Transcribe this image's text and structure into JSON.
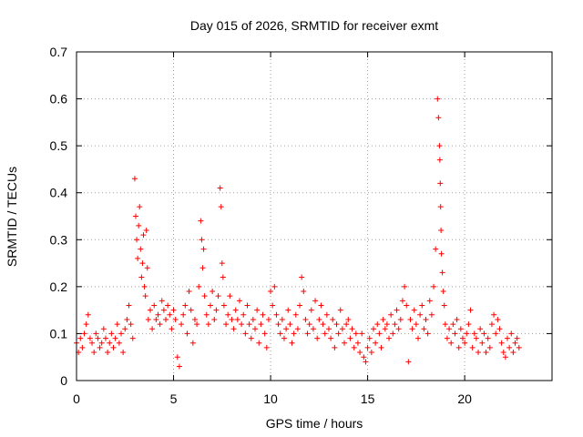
{
  "chart_data": {
    "type": "scatter",
    "title": "Day 015 of 2026, SRMTID for receiver exmt",
    "xlabel": "GPS time / hours",
    "ylabel": "SRMTID / TECUs",
    "xlim": [
      0,
      24.5
    ],
    "ylim": [
      0,
      0.7
    ],
    "xticks": [
      0,
      5,
      10,
      15,
      20
    ],
    "xtick_labels": [
      "0",
      "5",
      "10",
      "15",
      "20"
    ],
    "yticks": [
      0,
      0.1,
      0.2,
      0.3,
      0.4,
      0.5,
      0.6,
      0.7
    ],
    "ytick_labels": [
      "0",
      "0.1",
      "0.2",
      "0.3",
      "0.4",
      "0.5",
      "0.6",
      "0.7"
    ],
    "grid": true,
    "marker": "+",
    "color": "#ff0000",
    "series": [
      {
        "name": "SRMTID",
        "x": [
          0.0,
          0.1,
          0.2,
          0.3,
          0.4,
          0.5,
          0.6,
          0.7,
          0.8,
          0.9,
          1.0,
          1.1,
          1.2,
          1.3,
          1.4,
          1.5,
          1.6,
          1.7,
          1.8,
          1.9,
          2.0,
          2.1,
          2.2,
          2.3,
          2.4,
          2.5,
          2.6,
          2.7,
          2.8,
          2.9,
          3.0,
          3.05,
          3.1,
          3.15,
          3.2,
          3.25,
          3.3,
          3.35,
          3.4,
          3.45,
          3.5,
          3.55,
          3.6,
          3.65,
          3.7,
          3.8,
          3.9,
          4.0,
          4.1,
          4.2,
          4.3,
          4.4,
          4.5,
          4.6,
          4.7,
          4.8,
          4.9,
          5.0,
          5.1,
          5.2,
          5.3,
          5.4,
          5.5,
          5.6,
          5.7,
          5.8,
          5.9,
          6.0,
          6.1,
          6.2,
          6.3,
          6.4,
          6.45,
          6.5,
          6.55,
          6.6,
          6.7,
          6.8,
          6.9,
          7.0,
          7.1,
          7.2,
          7.3,
          7.4,
          7.45,
          7.5,
          7.55,
          7.6,
          7.7,
          7.8,
          7.9,
          8.0,
          8.1,
          8.2,
          8.3,
          8.4,
          8.5,
          8.6,
          8.7,
          8.8,
          8.9,
          9.0,
          9.1,
          9.2,
          9.3,
          9.4,
          9.5,
          9.6,
          9.7,
          9.8,
          9.9,
          10.0,
          10.1,
          10.2,
          10.3,
          10.4,
          10.5,
          10.6,
          10.7,
          10.8,
          10.9,
          11.0,
          11.1,
          11.2,
          11.3,
          11.4,
          11.5,
          11.6,
          11.7,
          11.8,
          11.9,
          12.0,
          12.1,
          12.2,
          12.3,
          12.4,
          12.5,
          12.6,
          12.7,
          12.8,
          12.9,
          13.0,
          13.1,
          13.2,
          13.3,
          13.4,
          13.5,
          13.6,
          13.7,
          13.8,
          13.9,
          14.0,
          14.1,
          14.2,
          14.3,
          14.4,
          14.5,
          14.6,
          14.7,
          14.8,
          14.9,
          15.0,
          15.1,
          15.2,
          15.3,
          15.4,
          15.5,
          15.6,
          15.7,
          15.8,
          15.9,
          16.0,
          16.1,
          16.2,
          16.3,
          16.4,
          16.5,
          16.6,
          16.7,
          16.8,
          16.9,
          17.0,
          17.1,
          17.2,
          17.3,
          17.4,
          17.5,
          17.6,
          17.7,
          17.8,
          17.9,
          18.0,
          18.1,
          18.2,
          18.3,
          18.4,
          18.5,
          18.6,
          18.65,
          18.7,
          18.72,
          18.74,
          18.76,
          18.78,
          18.8,
          18.85,
          18.9,
          18.95,
          19.0,
          19.1,
          19.2,
          19.3,
          19.4,
          19.5,
          19.6,
          19.7,
          19.8,
          19.9,
          20.0,
          20.1,
          20.2,
          20.3,
          20.4,
          20.5,
          20.6,
          20.7,
          20.8,
          20.9,
          21.0,
          21.1,
          21.2,
          21.3,
          21.4,
          21.5,
          21.6,
          21.7,
          21.8,
          21.9,
          22.0,
          22.1,
          22.2,
          22.3,
          22.4,
          22.5,
          22.6,
          22.7,
          22.8
        ],
        "y": [
          0.08,
          0.06,
          0.09,
          0.07,
          0.1,
          0.12,
          0.14,
          0.09,
          0.08,
          0.06,
          0.1,
          0.09,
          0.07,
          0.08,
          0.11,
          0.09,
          0.06,
          0.08,
          0.1,
          0.07,
          0.09,
          0.12,
          0.08,
          0.1,
          0.06,
          0.11,
          0.13,
          0.16,
          0.12,
          0.09,
          0.43,
          0.35,
          0.3,
          0.26,
          0.33,
          0.37,
          0.28,
          0.22,
          0.25,
          0.31,
          0.2,
          0.18,
          0.32,
          0.24,
          0.13,
          0.15,
          0.11,
          0.16,
          0.13,
          0.14,
          0.12,
          0.17,
          0.15,
          0.13,
          0.16,
          0.14,
          0.11,
          0.15,
          0.13,
          0.05,
          0.03,
          0.12,
          0.14,
          0.16,
          0.1,
          0.19,
          0.15,
          0.08,
          0.13,
          0.12,
          0.2,
          0.34,
          0.3,
          0.24,
          0.28,
          0.18,
          0.14,
          0.12,
          0.16,
          0.19,
          0.13,
          0.15,
          0.18,
          0.41,
          0.37,
          0.25,
          0.22,
          0.16,
          0.12,
          0.14,
          0.18,
          0.13,
          0.11,
          0.15,
          0.13,
          0.17,
          0.12,
          0.14,
          0.1,
          0.16,
          0.12,
          0.09,
          0.13,
          0.11,
          0.15,
          0.08,
          0.12,
          0.14,
          0.1,
          0.07,
          0.13,
          0.19,
          0.16,
          0.2,
          0.14,
          0.12,
          0.1,
          0.13,
          0.09,
          0.11,
          0.15,
          0.12,
          0.08,
          0.1,
          0.14,
          0.11,
          0.16,
          0.22,
          0.19,
          0.13,
          0.1,
          0.12,
          0.15,
          0.11,
          0.17,
          0.09,
          0.13,
          0.16,
          0.12,
          0.1,
          0.14,
          0.11,
          0.09,
          0.13,
          0.07,
          0.12,
          0.1,
          0.15,
          0.11,
          0.08,
          0.12,
          0.13,
          0.09,
          0.11,
          0.07,
          0.1,
          0.08,
          0.06,
          0.1,
          0.05,
          0.04,
          0.07,
          0.09,
          0.06,
          0.11,
          0.08,
          0.12,
          0.1,
          0.07,
          0.13,
          0.11,
          0.12,
          0.09,
          0.14,
          0.1,
          0.12,
          0.15,
          0.11,
          0.13,
          0.17,
          0.2,
          0.16,
          0.04,
          0.13,
          0.11,
          0.15,
          0.12,
          0.09,
          0.14,
          0.16,
          0.11,
          0.13,
          0.1,
          0.17,
          0.14,
          0.2,
          0.28,
          0.6,
          0.56,
          0.5,
          0.47,
          0.42,
          0.37,
          0.32,
          0.27,
          0.23,
          0.19,
          0.16,
          0.12,
          0.09,
          0.11,
          0.08,
          0.12,
          0.1,
          0.13,
          0.07,
          0.11,
          0.09,
          0.08,
          0.1,
          0.12,
          0.15,
          0.07,
          0.1,
          0.09,
          0.06,
          0.11,
          0.08,
          0.1,
          0.06,
          0.09,
          0.07,
          0.12,
          0.14,
          0.1,
          0.13,
          0.11,
          0.08,
          0.06,
          0.05,
          0.09,
          0.07,
          0.1,
          0.06,
          0.08,
          0.09,
          0.07
        ]
      }
    ]
  }
}
